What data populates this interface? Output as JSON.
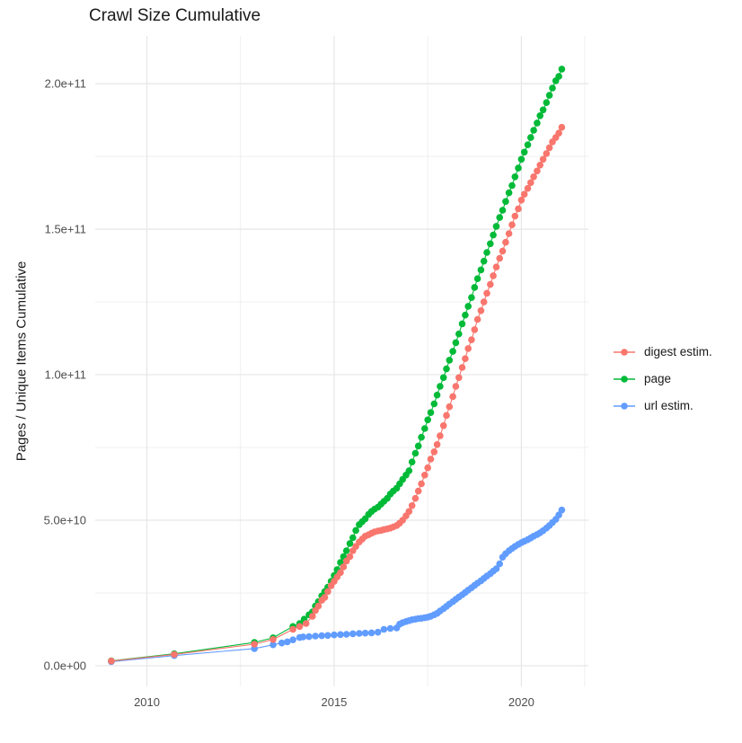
{
  "title": "Crawl Size Cumulative",
  "legend": [
    {
      "label": "digest estim.",
      "color": "#F8766D"
    },
    {
      "label": "page",
      "color": "#00BA38"
    },
    {
      "label": "url estim.",
      "color": "#619CFF"
    }
  ],
  "colors": {
    "grid_major": "#E6E6E6",
    "grid_minor": "#EDEDED",
    "tick_text": "#4d4d4d",
    "text": "#1a1a1a",
    "background": "#ffffff"
  },
  "chart_data": {
    "type": "line",
    "title": "Crawl Size Cumulative",
    "xlabel": "",
    "ylabel": "Pages / Unique Items Cumulative",
    "legend_position": "right",
    "grid": true,
    "y_unit_multiplier": 1000000000.0,
    "xlim": [
      2008.62,
      2021.79
    ],
    "ylim_billions": [
      -7.1,
      216.4
    ],
    "x_ticks": [
      {
        "v": 2010,
        "label": "2010"
      },
      {
        "v": 2015,
        "label": "2015"
      },
      {
        "v": 2020,
        "label": "2020"
      }
    ],
    "x_minor": [
      2012.5,
      2017.5,
      2021.69
    ],
    "y_ticks": [
      {
        "v": 0,
        "label": "0.0e+00"
      },
      {
        "v": 50,
        "label": "5.0e+10"
      },
      {
        "v": 100,
        "label": "1.0e+11"
      },
      {
        "v": 150,
        "label": "1.5e+11"
      },
      {
        "v": 200,
        "label": "2.0e+11"
      }
    ],
    "y_minor": [
      25,
      75,
      125,
      175
    ],
    "series": [
      {
        "name": "digest estim.",
        "color": "#F8766D",
        "points_unit": "year, billions",
        "points": [
          [
            2009.05,
            1.6
          ],
          [
            2010.73,
            3.9
          ],
          [
            2012.87,
            7.4
          ],
          [
            2013.37,
            9.0
          ],
          [
            2013.9,
            12.5
          ],
          [
            2014.08,
            13.5
          ],
          [
            2014.25,
            14.5
          ],
          [
            2014.42,
            17
          ],
          [
            2014.5,
            19
          ],
          [
            2014.58,
            20.5
          ],
          [
            2014.67,
            22.5
          ],
          [
            2014.75,
            23.5
          ],
          [
            2014.83,
            25.5
          ],
          [
            2014.92,
            27.5
          ],
          [
            2015.0,
            29
          ],
          [
            2015.08,
            30.5
          ],
          [
            2015.17,
            32
          ],
          [
            2015.25,
            34
          ],
          [
            2015.33,
            36
          ],
          [
            2015.42,
            37.5
          ],
          [
            2015.5,
            39.5
          ],
          [
            2015.58,
            41
          ],
          [
            2015.67,
            42.5
          ],
          [
            2015.75,
            43.5
          ],
          [
            2015.83,
            44.5
          ],
          [
            2015.92,
            45
          ],
          [
            2016.0,
            45.5
          ],
          [
            2016.08,
            46
          ],
          [
            2016.17,
            46.3
          ],
          [
            2016.25,
            46.5
          ],
          [
            2016.33,
            46.8
          ],
          [
            2016.42,
            47
          ],
          [
            2016.5,
            47.3
          ],
          [
            2016.58,
            47.7
          ],
          [
            2016.67,
            48.2
          ],
          [
            2016.75,
            49
          ],
          [
            2016.83,
            50
          ],
          [
            2016.92,
            51.5
          ],
          [
            2017.0,
            53
          ],
          [
            2017.08,
            55
          ],
          [
            2017.17,
            57.5
          ],
          [
            2017.25,
            60
          ],
          [
            2017.33,
            62.5
          ],
          [
            2017.42,
            65.5
          ],
          [
            2017.5,
            68
          ],
          [
            2017.58,
            71
          ],
          [
            2017.67,
            73.5
          ],
          [
            2017.75,
            76
          ],
          [
            2017.83,
            79
          ],
          [
            2017.92,
            82.5
          ],
          [
            2018.0,
            86
          ],
          [
            2018.08,
            89
          ],
          [
            2018.17,
            92.5
          ],
          [
            2018.25,
            96
          ],
          [
            2018.33,
            99
          ],
          [
            2018.42,
            102.5
          ],
          [
            2018.5,
            105.5
          ],
          [
            2018.58,
            109
          ],
          [
            2018.67,
            112
          ],
          [
            2018.75,
            115.5
          ],
          [
            2018.83,
            119
          ],
          [
            2018.92,
            122
          ],
          [
            2019.0,
            125
          ],
          [
            2019.08,
            128
          ],
          [
            2019.17,
            131
          ],
          [
            2019.25,
            134
          ],
          [
            2019.33,
            137
          ],
          [
            2019.42,
            140
          ],
          [
            2019.5,
            142.5
          ],
          [
            2019.58,
            145.5
          ],
          [
            2019.67,
            148.5
          ],
          [
            2019.75,
            151.5
          ],
          [
            2019.83,
            154.5
          ],
          [
            2019.92,
            157
          ],
          [
            2020.0,
            160
          ],
          [
            2020.08,
            162
          ],
          [
            2020.17,
            164
          ],
          [
            2020.25,
            166
          ],
          [
            2020.33,
            168
          ],
          [
            2020.42,
            170
          ],
          [
            2020.5,
            172
          ],
          [
            2020.58,
            174
          ],
          [
            2020.67,
            176
          ],
          [
            2020.75,
            178
          ],
          [
            2020.83,
            180
          ],
          [
            2020.92,
            181.5
          ],
          [
            2021.0,
            183
          ],
          [
            2021.08,
            185
          ]
        ]
      },
      {
        "name": "page",
        "color": "#00BA38",
        "points_unit": "year, billions",
        "points": [
          [
            2009.05,
            1.7
          ],
          [
            2010.73,
            4.1
          ],
          [
            2012.87,
            8.0
          ],
          [
            2013.37,
            9.6
          ],
          [
            2013.9,
            13.5
          ],
          [
            2014.08,
            14.5
          ],
          [
            2014.2,
            16
          ],
          [
            2014.33,
            17.5
          ],
          [
            2014.42,
            18.5
          ],
          [
            2014.5,
            20.5
          ],
          [
            2014.58,
            22
          ],
          [
            2014.67,
            24
          ],
          [
            2014.75,
            25.5
          ],
          [
            2014.83,
            27
          ],
          [
            2014.92,
            29
          ],
          [
            2015.0,
            31
          ],
          [
            2015.08,
            33
          ],
          [
            2015.17,
            35.5
          ],
          [
            2015.25,
            37.5
          ],
          [
            2015.33,
            39.5
          ],
          [
            2015.42,
            42
          ],
          [
            2015.5,
            44
          ],
          [
            2015.58,
            46.5
          ],
          [
            2015.67,
            48.5
          ],
          [
            2015.75,
            49.5
          ],
          [
            2015.83,
            50.5
          ],
          [
            2015.92,
            52
          ],
          [
            2016.0,
            53
          ],
          [
            2016.08,
            53.8
          ],
          [
            2016.17,
            54.5
          ],
          [
            2016.25,
            55.5
          ],
          [
            2016.33,
            56.5
          ],
          [
            2016.42,
            57.5
          ],
          [
            2016.5,
            59
          ],
          [
            2016.58,
            60
          ],
          [
            2016.67,
            61
          ],
          [
            2016.75,
            62.5
          ],
          [
            2016.83,
            64
          ],
          [
            2016.92,
            65.5
          ],
          [
            2017.0,
            67
          ],
          [
            2017.08,
            70
          ],
          [
            2017.17,
            73
          ],
          [
            2017.25,
            75.5
          ],
          [
            2017.33,
            78.5
          ],
          [
            2017.42,
            81.5
          ],
          [
            2017.5,
            84.5
          ],
          [
            2017.58,
            87
          ],
          [
            2017.67,
            90
          ],
          [
            2017.75,
            93
          ],
          [
            2017.83,
            96
          ],
          [
            2017.92,
            99
          ],
          [
            2018.0,
            102
          ],
          [
            2018.08,
            105
          ],
          [
            2018.17,
            108
          ],
          [
            2018.25,
            111
          ],
          [
            2018.33,
            114
          ],
          [
            2018.42,
            117.5
          ],
          [
            2018.5,
            120.5
          ],
          [
            2018.58,
            123.5
          ],
          [
            2018.67,
            126.5
          ],
          [
            2018.75,
            130
          ],
          [
            2018.83,
            133
          ],
          [
            2018.92,
            136
          ],
          [
            2019.0,
            139
          ],
          [
            2019.08,
            142
          ],
          [
            2019.17,
            145
          ],
          [
            2019.25,
            148
          ],
          [
            2019.33,
            151
          ],
          [
            2019.42,
            154
          ],
          [
            2019.5,
            156.5
          ],
          [
            2019.58,
            159.5
          ],
          [
            2019.67,
            162.5
          ],
          [
            2019.75,
            165
          ],
          [
            2019.83,
            168
          ],
          [
            2019.92,
            171
          ],
          [
            2020.0,
            174
          ],
          [
            2020.08,
            176.5
          ],
          [
            2020.17,
            179
          ],
          [
            2020.25,
            181.5
          ],
          [
            2020.33,
            184
          ],
          [
            2020.42,
            186.5
          ],
          [
            2020.5,
            189
          ],
          [
            2020.58,
            191
          ],
          [
            2020.67,
            193.5
          ],
          [
            2020.75,
            196
          ],
          [
            2020.83,
            198.5
          ],
          [
            2020.92,
            201
          ],
          [
            2021.0,
            202.5
          ],
          [
            2021.08,
            205
          ]
        ]
      },
      {
        "name": "url estim.",
        "color": "#619CFF",
        "points_unit": "year, billions",
        "points": [
          [
            2009.05,
            1.4
          ],
          [
            2010.73,
            3.5
          ],
          [
            2012.87,
            5.9
          ],
          [
            2013.37,
            7.2
          ],
          [
            2013.6,
            7.8
          ],
          [
            2013.75,
            8.2
          ],
          [
            2013.9,
            8.9
          ],
          [
            2014.08,
            9.7
          ],
          [
            2014.17,
            9.9
          ],
          [
            2014.33,
            10.0
          ],
          [
            2014.5,
            10.2
          ],
          [
            2014.67,
            10.3
          ],
          [
            2014.83,
            10.4
          ],
          [
            2015.0,
            10.6
          ],
          [
            2015.17,
            10.7
          ],
          [
            2015.33,
            10.8
          ],
          [
            2015.5,
            11.0
          ],
          [
            2015.67,
            11.1
          ],
          [
            2015.83,
            11.2
          ],
          [
            2016.0,
            11.3
          ],
          [
            2016.17,
            11.5
          ],
          [
            2016.33,
            12.5
          ],
          [
            2016.5,
            12.8
          ],
          [
            2016.67,
            13.0
          ],
          [
            2016.75,
            14.3
          ],
          [
            2016.83,
            14.8
          ],
          [
            2016.92,
            15.2
          ],
          [
            2017.0,
            15.5
          ],
          [
            2017.08,
            15.8
          ],
          [
            2017.17,
            16.0
          ],
          [
            2017.25,
            16.2
          ],
          [
            2017.33,
            16.3
          ],
          [
            2017.42,
            16.5
          ],
          [
            2017.5,
            16.7
          ],
          [
            2017.58,
            17.0
          ],
          [
            2017.67,
            17.5
          ],
          [
            2017.75,
            18.0
          ],
          [
            2017.83,
            18.8
          ],
          [
            2017.92,
            19.6
          ],
          [
            2018.0,
            20.4
          ],
          [
            2018.08,
            21.2
          ],
          [
            2018.17,
            22.0
          ],
          [
            2018.25,
            22.8
          ],
          [
            2018.33,
            23.6
          ],
          [
            2018.42,
            24.4
          ],
          [
            2018.5,
            25.2
          ],
          [
            2018.58,
            26.0
          ],
          [
            2018.67,
            26.8
          ],
          [
            2018.75,
            27.6
          ],
          [
            2018.83,
            28.4
          ],
          [
            2018.92,
            29.2
          ],
          [
            2019.0,
            30.0
          ],
          [
            2019.08,
            30.8
          ],
          [
            2019.17,
            31.6
          ],
          [
            2019.25,
            32.5
          ],
          [
            2019.33,
            33.3
          ],
          [
            2019.42,
            35.0
          ],
          [
            2019.5,
            37.3
          ],
          [
            2019.58,
            38.5
          ],
          [
            2019.67,
            39.5
          ],
          [
            2019.75,
            40.3
          ],
          [
            2019.83,
            41.0
          ],
          [
            2019.92,
            41.7
          ],
          [
            2020.0,
            42.3
          ],
          [
            2020.08,
            42.8
          ],
          [
            2020.17,
            43.3
          ],
          [
            2020.25,
            43.9
          ],
          [
            2020.33,
            44.5
          ],
          [
            2020.42,
            45.1
          ],
          [
            2020.5,
            45.7
          ],
          [
            2020.58,
            46.4
          ],
          [
            2020.67,
            47.3
          ],
          [
            2020.75,
            48.2
          ],
          [
            2020.83,
            49.2
          ],
          [
            2020.92,
            50.3
          ],
          [
            2021.0,
            51.8
          ],
          [
            2021.08,
            53.5
          ]
        ]
      }
    ]
  }
}
